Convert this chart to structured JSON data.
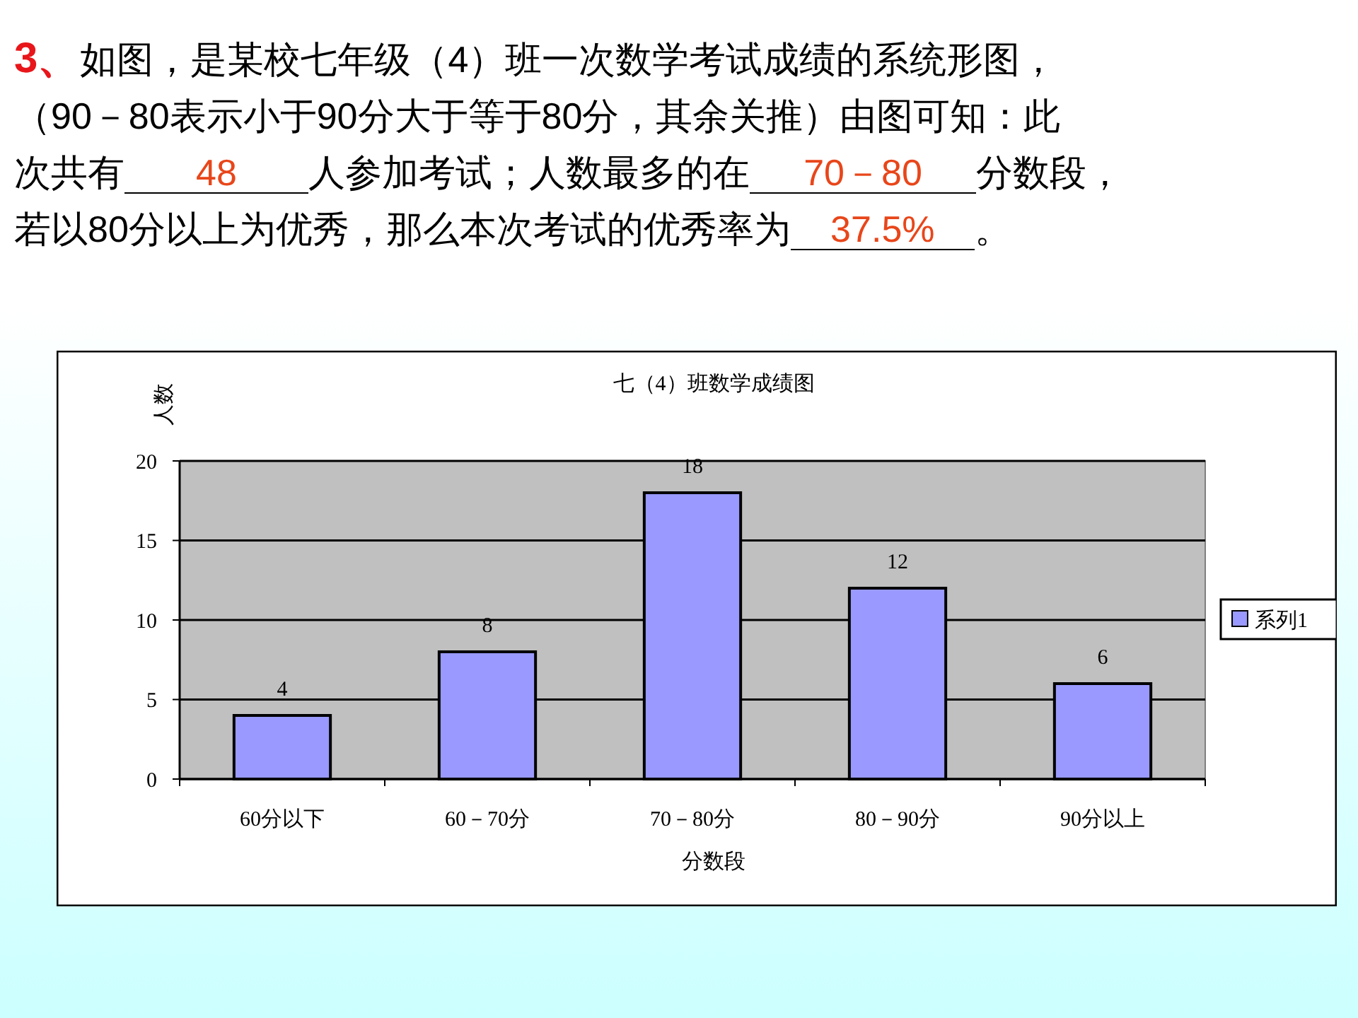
{
  "chart_data": {
    "type": "bar",
    "title": "七（4）班数学成绩图",
    "xlabel": "分数段",
    "ylabel": "人数",
    "categories": [
      "60分以下",
      "60－70分",
      "70－80分",
      "80－90分",
      "90分以上"
    ],
    "series": [
      {
        "name": "系列1",
        "color": "#9999ff",
        "values": [
          4,
          8,
          18,
          12,
          6
        ]
      }
    ],
    "ylim": [
      0,
      20
    ],
    "yticks": [
      0,
      5,
      10,
      15,
      20
    ],
    "grid": "y",
    "legend": "right",
    "data_labels": true,
    "annotations": [
      "3、",
      "如图，是某校七年级（4）班一次数学考试成绩的系统形图，",
      "（90－80表示小于90分大于等于80分，其余关推）由图可知：此",
      "次共有",
      "48",
      "人参加考试；人数最多的在",
      "70－80",
      "分数段，",
      "若以80分以上为优秀，那么本次考试的优秀率为",
      "37.5%",
      "。"
    ]
  }
}
